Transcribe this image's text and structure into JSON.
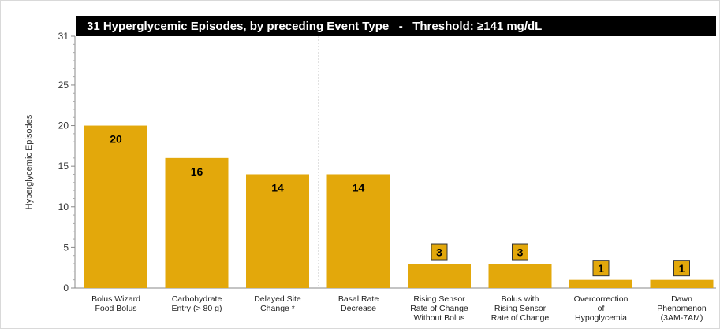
{
  "chart_data": {
    "type": "bar",
    "title": "31 Hyperglycemic Episodes, by preceding Event Type",
    "title_separator": "-",
    "subtitle": "Threshold: ≥141 mg/dL",
    "ylabel": "Hyperglycemic Episodes",
    "xlabel": "",
    "ylim": [
      0,
      31
    ],
    "yticks": [
      0,
      5,
      10,
      15,
      20,
      25,
      31
    ],
    "grid": false,
    "legend": "none",
    "bar_color": "#E3A80B",
    "divider_after_index": 2,
    "categories": [
      [
        "Bolus Wizard",
        "Food Bolus"
      ],
      [
        "Carbohydrate",
        "Entry (> 80 g)"
      ],
      [
        "Delayed Site",
        "Change *"
      ],
      [
        "Basal Rate",
        "Decrease"
      ],
      [
        "Rising Sensor",
        "Rate of Change",
        "Without Bolus"
      ],
      [
        "Bolus with",
        "Rising Sensor",
        "Rate of Change"
      ],
      [
        "Overcorrection",
        "of",
        "Hypoglycemia"
      ],
      [
        "Dawn",
        "Phenomenon",
        "(3AM-7AM)"
      ]
    ],
    "values": [
      20,
      16,
      14,
      14,
      3,
      3,
      1,
      1
    ],
    "data_labels": [
      "20",
      "16",
      "14",
      "14",
      "3",
      "3",
      "1",
      "1"
    ],
    "boxed_labels": [
      false,
      false,
      false,
      false,
      true,
      true,
      true,
      true
    ]
  }
}
